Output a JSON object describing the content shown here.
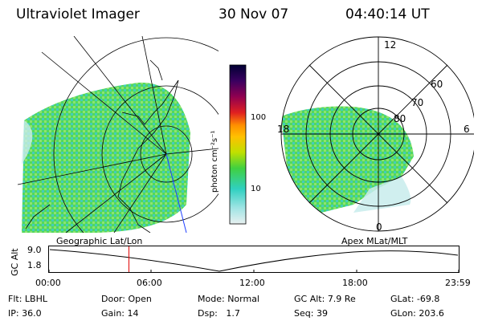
{
  "header": {
    "title": "Ultraviolet Imager",
    "date": "30 Nov 07",
    "time": "04:40:14 UT"
  },
  "left_panel": {
    "caption": "Geographic Lat/Lon"
  },
  "right_panel": {
    "caption": "Apex MLat/MLT",
    "mlt_labels": {
      "top": "12",
      "left": "18",
      "right": "6",
      "bottom": "0"
    },
    "lat_labels": [
      "60",
      "70",
      "80"
    ]
  },
  "colorbar": {
    "unit": "photon cm⁻²s⁻¹",
    "ticks": [
      "100",
      "10"
    ],
    "colors": [
      "#000033",
      "#1a0040",
      "#3a0060",
      "#600060",
      "#900050",
      "#c00030",
      "#e02020",
      "#ff5000",
      "#ff9000",
      "#ffc000",
      "#e0e000",
      "#a0e000",
      "#40d040",
      "#20c090",
      "#30d0c0",
      "#80e0e0",
      "#c0e8e8",
      "#e8f0f0"
    ]
  },
  "altitude_plot": {
    "ylabel": "GC Alt",
    "ymax": "9.0",
    "ymin": "1.8",
    "xticks": [
      "00:00",
      "06:00",
      "12:00",
      "18:00",
      "23:59"
    ],
    "current_time_fraction": 0.195
  },
  "info": {
    "row1": [
      {
        "label": "Flt:",
        "value": "LBHL"
      },
      {
        "label": "Door:",
        "value": "Open"
      },
      {
        "label": "Mode:",
        "value": "Normal"
      },
      {
        "label": "GC Alt:",
        "value": "7.9 Re"
      },
      {
        "label": "GLat:",
        "value": "-69.8"
      }
    ],
    "row2": [
      {
        "label": "IP:",
        "value": "36.0"
      },
      {
        "label": "Gain:",
        "value": "14"
      },
      {
        "label": "Dsp:",
        "value": "1.7"
      },
      {
        "label": "Seq:",
        "value": "39"
      },
      {
        "label": "GLon:",
        "value": "203.6"
      }
    ]
  }
}
